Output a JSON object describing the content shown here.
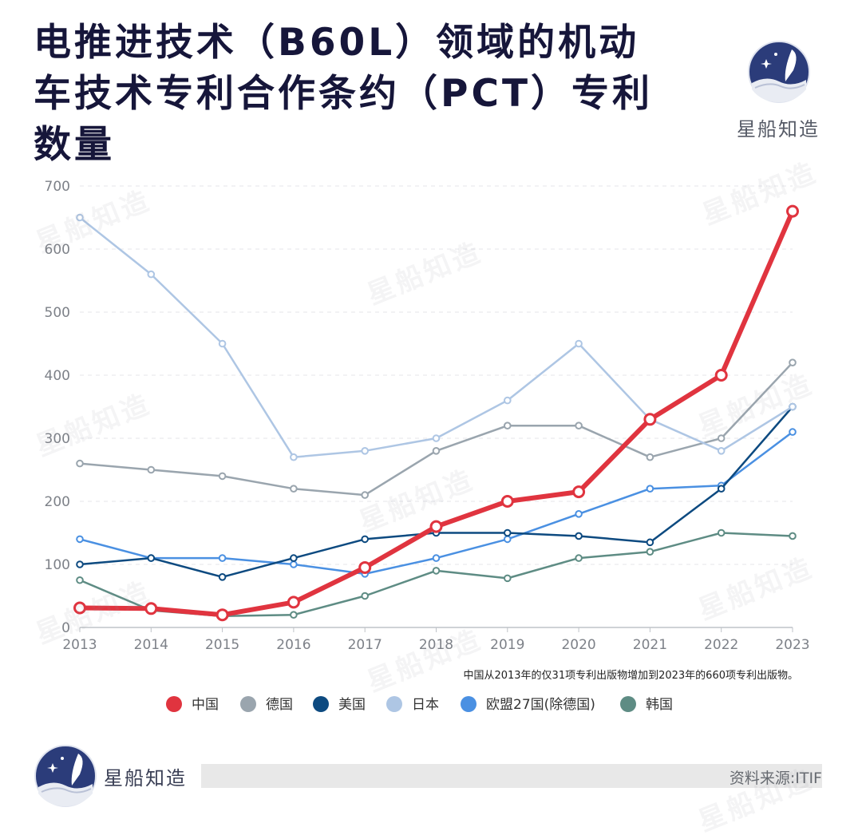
{
  "title": "电推进技术（B60L）领域的机动车技术专利合作条约（PCT）专利数量",
  "brand": "星船知造",
  "watermark": "星船知造",
  "source": "资料来源:ITIF",
  "annotation": "中国从2013年的仅31项专利出版物增加到2023年的660项专利出版物。",
  "chart_data": {
    "type": "line",
    "x": [
      "2013",
      "2014",
      "2015",
      "2016",
      "2017",
      "2018",
      "2019",
      "2020",
      "2021",
      "2022",
      "2023"
    ],
    "yticks": [
      "0",
      "100",
      "200",
      "300",
      "400",
      "500",
      "600",
      "700"
    ],
    "ylim": [
      0,
      700
    ],
    "grid": true,
    "legend_position": "bottom",
    "series": [
      {
        "name": "韩国",
        "color": "#5e8c84",
        "values": [
          75,
          27,
          18,
          20,
          50,
          90,
          78,
          110,
          120,
          150,
          145
        ]
      },
      {
        "name": "欧盟27国(除德国)",
        "color": "#4a90e2",
        "values": [
          140,
          110,
          110,
          100,
          85,
          110,
          140,
          180,
          220,
          225,
          310
        ]
      },
      {
        "name": "美国",
        "color": "#0d4a80",
        "values": [
          100,
          110,
          80,
          110,
          140,
          150,
          150,
          145,
          135,
          220,
          350
        ]
      },
      {
        "name": "德国",
        "color": "#9aa5ae",
        "values": [
          260,
          250,
          240,
          220,
          210,
          280,
          320,
          320,
          270,
          300,
          420
        ]
      },
      {
        "name": "日本",
        "color": "#aec6e4",
        "values": [
          650,
          560,
          450,
          270,
          280,
          300,
          360,
          450,
          330,
          280,
          350
        ]
      },
      {
        "name": "中国",
        "color": "#e0343f",
        "values": [
          31,
          30,
          20,
          40,
          95,
          160,
          200,
          215,
          330,
          400,
          660
        ]
      }
    ],
    "legend": [
      "中国",
      "德国",
      "美国",
      "日本",
      "欧盟27国(除德国)",
      "韩国"
    ]
  }
}
